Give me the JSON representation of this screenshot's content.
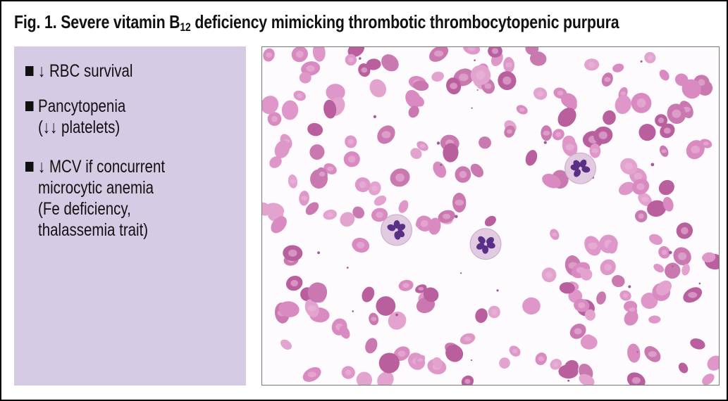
{
  "figure": {
    "title_prefix": "Fig. 1. Severe vitamin B",
    "title_subscript": "12",
    "title_suffix": " deficiency mimicking thrombotic thrombocytopenic purpura"
  },
  "findings": [
    {
      "lines": [
        "↓ RBC survival"
      ]
    },
    {
      "lines": [
        "Pancytopenia",
        "(↓↓ platelets)"
      ]
    },
    {
      "lines": [
        "↓ MCV if concurrent",
        "microcytic anemia",
        "(Fe deficiency,",
        "thalassemia trait)"
      ]
    }
  ],
  "colors": {
    "panel": "#d5cbe4",
    "rbc": "#d98ac0",
    "nucleus": "#5a2f86"
  },
  "image": {
    "icon": "blood-smear-micrograph"
  }
}
